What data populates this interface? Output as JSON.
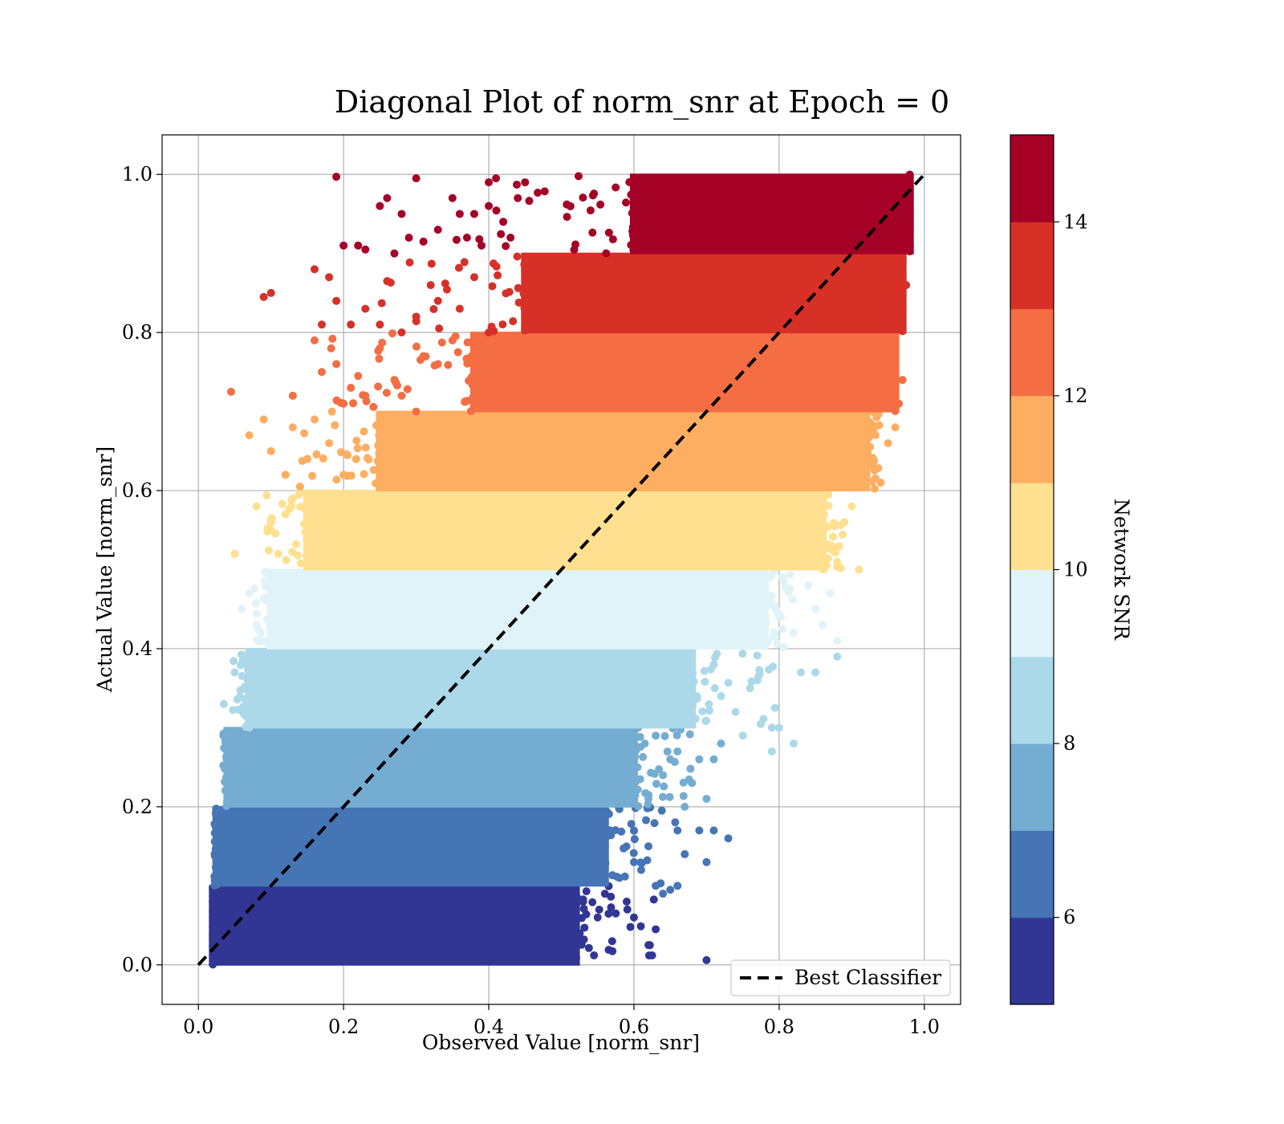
{
  "chart_data": {
    "type": "scatter",
    "title": "Diagonal Plot of norm_snr at Epoch = 0",
    "xlabel": "Observed Value [norm_snr]",
    "ylabel": "Actual Value [norm_snr]",
    "xlim": [
      -0.05,
      1.05
    ],
    "ylim": [
      -0.05,
      1.05
    ],
    "xticks": [
      0.0,
      0.2,
      0.4,
      0.6,
      0.8,
      1.0
    ],
    "xtick_labels": [
      "0.0",
      "0.2",
      "0.4",
      "0.6",
      "0.8",
      "1.0"
    ],
    "yticks": [
      0.0,
      0.2,
      0.4,
      0.6,
      0.8,
      1.0
    ],
    "ytick_labels": [
      "0.0",
      "0.2",
      "0.4",
      "0.6",
      "0.8",
      "1.0"
    ],
    "grid": true,
    "legend": {
      "placement": "lower-right",
      "entries": [
        "Best Classifier"
      ]
    },
    "reference_line": {
      "name": "Best Classifier",
      "style": "dashed",
      "color": "#000000",
      "points": [
        [
          0.0,
          0.0
        ],
        [
          1.0,
          1.0
        ]
      ]
    },
    "colorbar": {
      "label": "Network SNR",
      "range": [
        5,
        15
      ],
      "ticks": [
        6,
        8,
        10,
        12,
        14
      ],
      "tick_labels": [
        "6",
        "8",
        "10",
        "12",
        "14"
      ],
      "colormap": "RdYlBu_r (10 levels)",
      "levels": [
        "#313695",
        "#4575b4",
        "#74add1",
        "#abd9e9",
        "#e0f3f8",
        "#fee090",
        "#fdae61",
        "#f46d43",
        "#d73027",
        "#a50026"
      ]
    },
    "bands": [
      {
        "snr_range": [
          5,
          6
        ],
        "color": "#313695",
        "y_range": [
          0.0,
          0.1
        ],
        "x_core": [
          0.02,
          0.52
        ],
        "x_extent": [
          0.02,
          0.7
        ]
      },
      {
        "snr_range": [
          6,
          7
        ],
        "color": "#4575b4",
        "y_range": [
          0.1,
          0.2
        ],
        "x_core": [
          0.025,
          0.56
        ],
        "x_extent": [
          0.02,
          0.73
        ]
      },
      {
        "snr_range": [
          7,
          8
        ],
        "color": "#74add1",
        "y_range": [
          0.2,
          0.3
        ],
        "x_core": [
          0.04,
          0.6
        ],
        "x_extent": [
          0.03,
          0.74
        ]
      },
      {
        "snr_range": [
          8,
          9
        ],
        "color": "#abd9e9",
        "y_range": [
          0.3,
          0.4
        ],
        "x_core": [
          0.07,
          0.68
        ],
        "x_extent": [
          0.03,
          0.88
        ]
      },
      {
        "snr_range": [
          9,
          10
        ],
        "color": "#e0f3f8",
        "y_range": [
          0.4,
          0.5
        ],
        "x_core": [
          0.1,
          0.78
        ],
        "x_extent": [
          0.06,
          0.85
        ]
      },
      {
        "snr_range": [
          10,
          11
        ],
        "color": "#fee090",
        "y_range": [
          0.5,
          0.6
        ],
        "x_core": [
          0.15,
          0.86
        ],
        "x_extent": [
          0.05,
          0.91
        ]
      },
      {
        "snr_range": [
          11,
          12
        ],
        "color": "#fdae61",
        "y_range": [
          0.6,
          0.7
        ],
        "x_core": [
          0.25,
          0.92
        ],
        "x_extent": [
          0.07,
          0.95
        ]
      },
      {
        "snr_range": [
          12,
          13
        ],
        "color": "#f46d43",
        "y_range": [
          0.7,
          0.8
        ],
        "x_core": [
          0.38,
          0.96
        ],
        "x_extent": [
          0.04,
          0.96
        ]
      },
      {
        "snr_range": [
          13,
          14
        ],
        "color": "#d73027",
        "y_range": [
          0.8,
          0.9
        ],
        "x_core": [
          0.45,
          0.97
        ],
        "x_extent": [
          0.08,
          0.97
        ]
      },
      {
        "snr_range": [
          14,
          15
        ],
        "color": "#a50026",
        "y_range": [
          0.9,
          1.0
        ],
        "x_core": [
          0.6,
          0.98
        ],
        "x_extent": [
          0.19,
          0.98
        ]
      }
    ],
    "outliers": [
      {
        "band": 0,
        "points": [
          [
            0.53,
            0.08
          ],
          [
            0.55,
            0.06
          ],
          [
            0.57,
            0.03
          ],
          [
            0.59,
            0.08
          ],
          [
            0.6,
            0.06
          ],
          [
            0.62,
            0.025
          ],
          [
            0.63,
            0.045
          ],
          [
            0.7,
            0.006
          ],
          [
            0.545,
            0.012
          ],
          [
            0.56,
            0.09
          ],
          [
            0.575,
            0.065
          ],
          [
            0.625,
            0.012
          ],
          [
            0.51,
            0.09
          ],
          [
            0.52,
            0.02
          ],
          [
            0.49,
            0.03
          ]
        ]
      },
      {
        "band": 1,
        "points": [
          [
            0.58,
            0.11
          ],
          [
            0.6,
            0.17
          ],
          [
            0.62,
            0.15
          ],
          [
            0.64,
            0.09
          ],
          [
            0.66,
            0.17
          ],
          [
            0.69,
            0.17
          ],
          [
            0.7,
            0.13
          ],
          [
            0.71,
            0.17
          ],
          [
            0.73,
            0.16
          ],
          [
            0.63,
            0.1
          ],
          [
            0.66,
            0.1
          ],
          [
            0.6,
            0.13
          ],
          [
            0.65,
            0.095
          ],
          [
            0.67,
            0.14
          ],
          [
            0.61,
            0.12
          ]
        ]
      },
      {
        "band": 2,
        "points": [
          [
            0.63,
            0.29
          ],
          [
            0.66,
            0.27
          ],
          [
            0.68,
            0.23
          ],
          [
            0.69,
            0.26
          ],
          [
            0.7,
            0.21
          ],
          [
            0.71,
            0.26
          ],
          [
            0.72,
            0.28
          ],
          [
            0.64,
            0.24
          ],
          [
            0.67,
            0.2
          ],
          [
            0.62,
            0.215
          ],
          [
            0.605,
            0.25
          ],
          [
            0.65,
            0.26
          ],
          [
            0.62,
            0.21
          ]
        ]
      },
      {
        "band": 3,
        "points": [
          [
            0.72,
            0.34
          ],
          [
            0.74,
            0.32
          ],
          [
            0.76,
            0.35
          ],
          [
            0.79,
            0.3
          ],
          [
            0.8,
            0.3
          ],
          [
            0.82,
            0.28
          ],
          [
            0.79,
            0.27
          ],
          [
            0.85,
            0.37
          ],
          [
            0.88,
            0.39
          ],
          [
            0.035,
            0.33
          ],
          [
            0.05,
            0.37
          ],
          [
            0.06,
            0.38
          ],
          [
            0.77,
            0.36
          ],
          [
            0.83,
            0.37
          ],
          [
            0.71,
            0.38
          ],
          [
            0.75,
            0.29
          ]
        ]
      },
      {
        "band": 4,
        "points": [
          [
            0.06,
            0.45
          ],
          [
            0.07,
            0.47
          ],
          [
            0.08,
            0.43
          ],
          [
            0.09,
            0.41
          ],
          [
            0.82,
            0.42
          ],
          [
            0.84,
            0.48
          ],
          [
            0.86,
            0.43
          ],
          [
            0.88,
            0.41
          ],
          [
            0.85,
            0.45
          ],
          [
            0.8,
            0.44
          ],
          [
            0.87,
            0.47
          ]
        ]
      },
      {
        "band": 5,
        "points": [
          [
            0.05,
            0.52
          ],
          [
            0.08,
            0.58
          ],
          [
            0.1,
            0.55
          ],
          [
            0.12,
            0.57
          ],
          [
            0.11,
            0.52
          ],
          [
            0.88,
            0.51
          ],
          [
            0.89,
            0.56
          ],
          [
            0.9,
            0.58
          ],
          [
            0.91,
            0.5
          ],
          [
            0.87,
            0.53
          ],
          [
            0.13,
            0.59
          ]
        ]
      },
      {
        "band": 6,
        "points": [
          [
            0.07,
            0.67
          ],
          [
            0.09,
            0.69
          ],
          [
            0.1,
            0.65
          ],
          [
            0.12,
            0.62
          ],
          [
            0.13,
            0.68
          ],
          [
            0.15,
            0.64
          ],
          [
            0.16,
            0.69
          ],
          [
            0.94,
            0.61
          ],
          [
            0.95,
            0.66
          ],
          [
            0.93,
            0.63
          ],
          [
            0.96,
            0.68
          ],
          [
            0.14,
            0.605
          ],
          [
            0.18,
            0.66
          ],
          [
            0.2,
            0.62
          ]
        ]
      },
      {
        "band": 7,
        "points": [
          [
            0.045,
            0.725
          ],
          [
            0.13,
            0.72
          ],
          [
            0.16,
            0.79
          ],
          [
            0.17,
            0.75
          ],
          [
            0.19,
            0.76
          ],
          [
            0.21,
            0.73
          ],
          [
            0.23,
            0.72
          ],
          [
            0.25,
            0.78
          ],
          [
            0.27,
            0.74
          ],
          [
            0.3,
            0.7
          ],
          [
            0.33,
            0.76
          ],
          [
            0.35,
            0.79
          ],
          [
            0.2,
            0.71
          ],
          [
            0.22,
            0.745
          ],
          [
            0.28,
            0.72
          ],
          [
            0.31,
            0.77
          ],
          [
            0.97,
            0.74
          ],
          [
            0.965,
            0.71
          ]
        ]
      },
      {
        "band": 8,
        "points": [
          [
            0.09,
            0.845
          ],
          [
            0.1,
            0.85
          ],
          [
            0.16,
            0.88
          ],
          [
            0.18,
            0.87
          ],
          [
            0.19,
            0.84
          ],
          [
            0.21,
            0.81
          ],
          [
            0.23,
            0.83
          ],
          [
            0.25,
            0.81
          ],
          [
            0.26,
            0.865
          ],
          [
            0.28,
            0.8
          ],
          [
            0.3,
            0.82
          ],
          [
            0.32,
            0.86
          ],
          [
            0.33,
            0.84
          ],
          [
            0.36,
            0.83
          ],
          [
            0.38,
            0.87
          ],
          [
            0.4,
            0.8
          ],
          [
            0.975,
            0.86
          ],
          [
            0.17,
            0.81
          ]
        ]
      },
      {
        "band": 9,
        "points": [
          [
            0.19,
            0.997
          ],
          [
            0.3,
            0.995
          ],
          [
            0.4,
            0.99
          ],
          [
            0.41,
            0.995
          ],
          [
            0.25,
            0.96
          ],
          [
            0.26,
            0.97
          ],
          [
            0.35,
            0.97
          ],
          [
            0.36,
            0.95
          ],
          [
            0.38,
            0.95
          ],
          [
            0.4,
            0.96
          ],
          [
            0.28,
            0.95
          ],
          [
            0.22,
            0.91
          ],
          [
            0.2,
            0.91
          ],
          [
            0.23,
            0.905
          ],
          [
            0.27,
            0.9
          ],
          [
            0.29,
            0.92
          ],
          [
            0.31,
            0.915
          ],
          [
            0.33,
            0.93
          ],
          [
            0.37,
            0.92
          ],
          [
            0.39,
            0.91
          ],
          [
            0.42,
            0.94
          ],
          [
            0.43,
            0.92
          ],
          [
            0.44,
            0.97
          ],
          [
            0.45,
            0.99
          ]
        ]
      }
    ]
  }
}
